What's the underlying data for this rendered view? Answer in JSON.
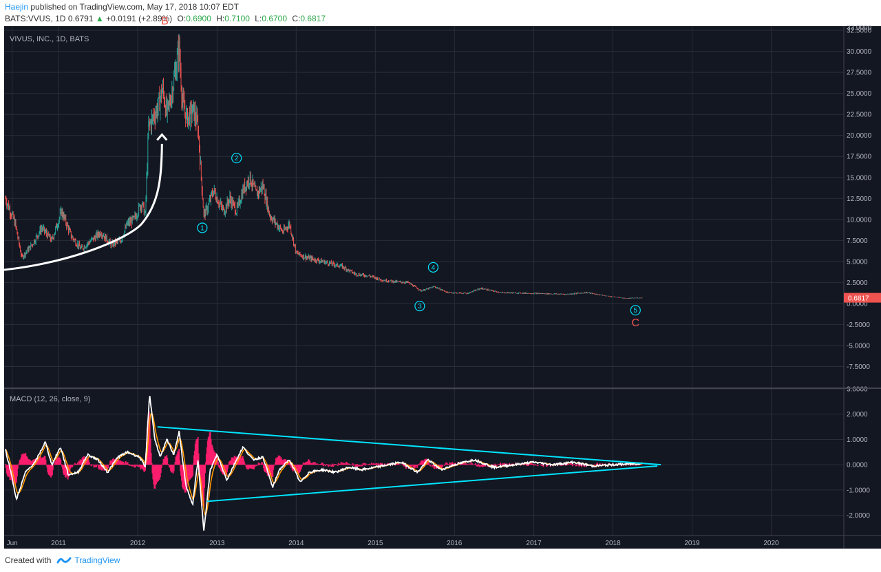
{
  "header": {
    "author": "Haejin",
    "published": " published on TradingView.com, May 17, 2018 10:07 EDT",
    "symbol": "BATS:VVUS, 1D",
    "last": "0.6791",
    "up_arrow": "▲",
    "change": "+0.0191 (+2.89%)",
    "o_label": "O:",
    "o": "0.6900",
    "h_label": "H:",
    "h": "0.7100",
    "l_label": "L:",
    "l": "0.6700",
    "c_label": "C:",
    "c": "0.6817"
  },
  "footer": {
    "created": "Created with",
    "brand": "TradingView"
  },
  "chart_data": [
    {
      "type": "candlestick",
      "title": "VIVUS, INC., 1D, BATS",
      "ylim": [
        -10,
        33
      ],
      "y_ticks": [
        "33.0000",
        "32.5000",
        "30.0000",
        "27.5000",
        "25.0000",
        "22.5000",
        "20.0000",
        "17.5000",
        "15.0000",
        "12.5000",
        "10.0000",
        "7.5000",
        "5.0000",
        "2.5000",
        "0.0000",
        "-2.5000",
        "-5.0000",
        "-7.5000"
      ],
      "price_label": "0.6817",
      "x_ticks": [
        "Jun",
        "2011",
        "2012",
        "2013",
        "2014",
        "2015",
        "2016",
        "2017",
        "2018",
        "2019",
        "2020"
      ],
      "price_path": [
        [
          "2010-05-01",
          12.5
        ],
        [
          "2010-06-15",
          9.5
        ],
        [
          "2010-07-15",
          5.5
        ],
        [
          "2010-09-01",
          7.0
        ],
        [
          "2010-10-15",
          9.0
        ],
        [
          "2010-12-01",
          7.5
        ],
        [
          "2011-01-15",
          11.0
        ],
        [
          "2011-03-01",
          8.0
        ],
        [
          "2011-04-15",
          6.5
        ],
        [
          "2011-06-01",
          7.5
        ],
        [
          "2011-07-15",
          8.5
        ],
        [
          "2011-09-01",
          7.0
        ],
        [
          "2011-10-15",
          7.5
        ],
        [
          "2011-11-15",
          9.5
        ],
        [
          "2011-12-15",
          10.0
        ],
        [
          "2012-01-20",
          12.0
        ],
        [
          "2012-02-05",
          10.5
        ],
        [
          "2012-02-20",
          21.0
        ],
        [
          "2012-03-10",
          22.0
        ],
        [
          "2012-04-05",
          23.5
        ],
        [
          "2012-04-25",
          25.5
        ],
        [
          "2012-05-15",
          22.5
        ],
        [
          "2012-06-05",
          25.0
        ],
        [
          "2012-06-25",
          28.0
        ],
        [
          "2012-07-10",
          30.5
        ],
        [
          "2012-07-25",
          24.0
        ],
        [
          "2012-08-15",
          22.0
        ],
        [
          "2012-09-15",
          23.0
        ],
        [
          "2012-10-05",
          21.0
        ],
        [
          "2012-10-15",
          17.0
        ],
        [
          "2012-11-01",
          10.5
        ],
        [
          "2012-11-20",
          11.5
        ],
        [
          "2012-12-15",
          13.5
        ],
        [
          "2013-01-10",
          12.0
        ],
        [
          "2013-02-01",
          11.0
        ],
        [
          "2013-03-01",
          12.5
        ],
        [
          "2013-04-01",
          11.0
        ],
        [
          "2013-05-01",
          13.5
        ],
        [
          "2013-06-01",
          15.0
        ],
        [
          "2013-07-01",
          13.0
        ],
        [
          "2013-08-01",
          14.0
        ],
        [
          "2013-09-01",
          10.5
        ],
        [
          "2013-10-01",
          9.5
        ],
        [
          "2013-11-01",
          8.5
        ],
        [
          "2013-12-01",
          9.5
        ],
        [
          "2014-01-01",
          6.0
        ],
        [
          "2014-02-15",
          5.5
        ],
        [
          "2014-04-01",
          5.2
        ],
        [
          "2014-06-01",
          4.8
        ],
        [
          "2014-08-01",
          4.4
        ],
        [
          "2014-10-01",
          3.5
        ],
        [
          "2014-12-01",
          3.3
        ],
        [
          "2015-02-01",
          2.8
        ],
        [
          "2015-04-01",
          2.6
        ],
        [
          "2015-06-01",
          2.5
        ],
        [
          "2015-08-01",
          1.5
        ],
        [
          "2015-10-01",
          2.0
        ],
        [
          "2015-12-01",
          1.3
        ],
        [
          "2016-03-01",
          1.2
        ],
        [
          "2016-05-01",
          1.8
        ],
        [
          "2016-08-01",
          1.3
        ],
        [
          "2017-01-01",
          1.2
        ],
        [
          "2017-06-01",
          1.1
        ],
        [
          "2017-09-01",
          1.3
        ],
        [
          "2017-12-01",
          0.9
        ],
        [
          "2018-03-01",
          0.6
        ],
        [
          "2018-05-17",
          0.68
        ]
      ],
      "annotations": [
        {
          "label": "B",
          "date": "2012-05-05",
          "y": 33.2,
          "color": "#ef5350"
        },
        {
          "label": "C",
          "date": "2018-04-15",
          "y": -2.7,
          "color": "#ef5350"
        },
        {
          "label": "1",
          "date": "2012-10-25",
          "y": 9.0,
          "circle": true
        },
        {
          "label": "2",
          "date": "2013-04-01",
          "y": 17.3,
          "circle": true
        },
        {
          "label": "3",
          "date": "2015-07-25",
          "y": -0.3,
          "circle": true
        },
        {
          "label": "4",
          "date": "2015-09-25",
          "y": 4.3,
          "circle": true
        },
        {
          "label": "5",
          "date": "2018-04-15",
          "y": -0.8,
          "circle": true
        }
      ],
      "colors": {
        "up": "#26a69a",
        "down": "#ef5350",
        "grid": "#2a2e39",
        "bg": "#131722",
        "text": "#b2b5be",
        "cyan": "#00e5ff",
        "white": "#ffffff"
      }
    },
    {
      "type": "line",
      "title": "MACD (12, 26, close, 9)",
      "ylim": [
        -2.8,
        3.0
      ],
      "y_ticks": [
        "3.0000",
        "2.0000",
        "1.0000",
        "0.0000",
        "-1.0000",
        "-2.0000"
      ],
      "macd_points": [
        [
          "2010-05-01",
          0.6
        ],
        [
          "2010-06-01",
          -0.5
        ],
        [
          "2010-06-20",
          -1.4
        ],
        [
          "2010-08-01",
          -0.3
        ],
        [
          "2010-09-15",
          0.1
        ],
        [
          "2010-11-01",
          0.9
        ],
        [
          "2010-12-01",
          0.0
        ],
        [
          "2011-01-10",
          0.7
        ],
        [
          "2011-02-15",
          -0.4
        ],
        [
          "2011-04-01",
          -0.3
        ],
        [
          "2011-05-15",
          0.4
        ],
        [
          "2011-07-01",
          0.2
        ],
        [
          "2011-08-15",
          -0.3
        ],
        [
          "2011-10-01",
          0.3
        ],
        [
          "2011-11-15",
          0.5
        ],
        [
          "2012-01-10",
          0.3
        ],
        [
          "2012-02-05",
          -0.1
        ],
        [
          "2012-02-25",
          2.8
        ],
        [
          "2012-03-20",
          1.0
        ],
        [
          "2012-04-15",
          0.3
        ],
        [
          "2012-05-15",
          1.0
        ],
        [
          "2012-06-15",
          0.4
        ],
        [
          "2012-07-10",
          1.3
        ],
        [
          "2012-08-10",
          -0.8
        ],
        [
          "2012-09-10",
          -1.6
        ],
        [
          "2012-10-05",
          0.2
        ],
        [
          "2012-11-01",
          -2.6
        ],
        [
          "2012-12-01",
          -0.2
        ],
        [
          "2013-01-01",
          0.4
        ],
        [
          "2013-02-15",
          -0.6
        ],
        [
          "2013-04-01",
          0.2
        ],
        [
          "2013-05-01",
          0.7
        ],
        [
          "2013-06-15",
          0.2
        ],
        [
          "2013-08-01",
          0.3
        ],
        [
          "2013-09-15",
          -0.9
        ],
        [
          "2013-10-15",
          -0.2
        ],
        [
          "2013-12-01",
          0.2
        ],
        [
          "2014-01-20",
          -0.7
        ],
        [
          "2014-03-01",
          -0.3
        ],
        [
          "2014-05-01",
          -0.2
        ],
        [
          "2014-07-01",
          -0.3
        ],
        [
          "2014-09-01",
          -0.1
        ],
        [
          "2014-11-01",
          -0.2
        ],
        [
          "2015-01-01",
          -0.1
        ],
        [
          "2015-03-01",
          0.0
        ],
        [
          "2015-05-01",
          0.1
        ],
        [
          "2015-07-15",
          -0.3
        ],
        [
          "2015-09-01",
          0.2
        ],
        [
          "2015-11-01",
          -0.2
        ],
        [
          "2016-01-01",
          0.0
        ],
        [
          "2016-04-01",
          0.2
        ],
        [
          "2016-07-01",
          -0.1
        ],
        [
          "2016-10-01",
          0.0
        ],
        [
          "2017-01-01",
          0.1
        ],
        [
          "2017-04-01",
          0.0
        ],
        [
          "2017-07-01",
          0.1
        ],
        [
          "2017-10-01",
          -0.05
        ],
        [
          "2018-01-01",
          0.0
        ],
        [
          "2018-05-17",
          0.05
        ]
      ],
      "trendlines": [
        {
          "from": [
            "2012-04-01",
            1.5
          ],
          "to": [
            "2018-08-10",
            0.0
          ]
        },
        {
          "from": [
            "2012-11-15",
            -1.45
          ],
          "to": [
            "2018-07-25",
            -0.05
          ]
        }
      ]
    }
  ]
}
